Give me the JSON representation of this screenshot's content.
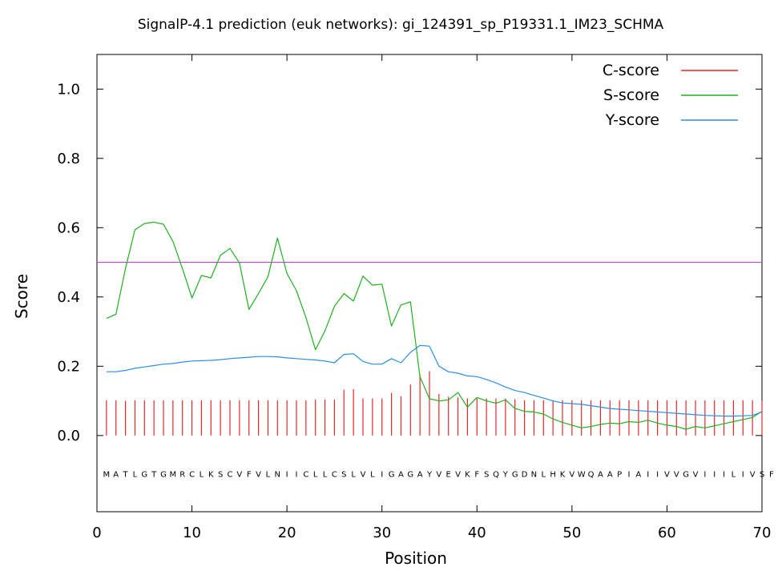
{
  "chart_data": {
    "type": "line",
    "title": "SignalP-4.1 prediction (euk networks): gi_124391_sp_P19331.1_IM23_SCHMA",
    "xlabel": "Position",
    "ylabel": "Score",
    "xlim": [
      0,
      70
    ],
    "ylim": [
      -0.22,
      1.1
    ],
    "xticks": [
      0,
      10,
      20,
      30,
      40,
      50,
      60,
      70
    ],
    "yticks": [
      0.0,
      0.2,
      0.4,
      0.6,
      0.8,
      1.0
    ],
    "xtick_labels": [
      "0",
      "10",
      "20",
      "30",
      "40",
      "50",
      "60",
      "70"
    ],
    "ytick_labels": [
      "0.0",
      "0.2",
      "0.4",
      "0.6",
      "0.8",
      "1.0"
    ],
    "threshold": 0.5,
    "legend_position": "top-right",
    "sequence": "MATLGTGMRCLKSCVFVLNIICLLCSLVLIGAGAYVEVKFSQYGDNLHKVWQAAPIAIIVVGVIIILIVSF",
    "colors": {
      "c_score": "#e8262a",
      "s_score": "#1fb01f",
      "y_score": "#2a8ee8",
      "threshold": "#c040e8"
    },
    "series": [
      {
        "name": "C-score",
        "style": "impulse",
        "x": [
          1,
          2,
          3,
          4,
          5,
          6,
          7,
          8,
          9,
          10,
          11,
          12,
          13,
          14,
          15,
          16,
          17,
          18,
          19,
          20,
          21,
          22,
          23,
          24,
          25,
          26,
          27,
          28,
          29,
          30,
          31,
          32,
          33,
          34,
          35,
          36,
          37,
          38,
          39,
          40,
          41,
          42,
          43,
          44,
          45,
          46,
          47,
          48,
          49,
          50,
          51,
          52,
          53,
          54,
          55,
          56,
          57,
          58,
          59,
          60,
          61,
          62,
          63,
          64,
          65,
          66,
          67,
          68,
          69,
          70
        ],
        "values": [
          0.102,
          0.102,
          0.1,
          0.102,
          0.102,
          0.102,
          0.102,
          0.102,
          0.102,
          0.102,
          0.102,
          0.102,
          0.102,
          0.102,
          0.102,
          0.102,
          0.102,
          0.102,
          0.102,
          0.102,
          0.102,
          0.102,
          0.104,
          0.104,
          0.104,
          0.132,
          0.134,
          0.107,
          0.107,
          0.107,
          0.123,
          0.113,
          0.147,
          0.175,
          0.186,
          0.12,
          0.112,
          0.11,
          0.107,
          0.107,
          0.107,
          0.107,
          0.107,
          0.105,
          0.102,
          0.102,
          0.102,
          0.102,
          0.102,
          0.102,
          0.102,
          0.102,
          0.102,
          0.102,
          0.102,
          0.102,
          0.102,
          0.102,
          0.102,
          0.102,
          0.102,
          0.102,
          0.102,
          0.102,
          0.102,
          0.102,
          0.102,
          0.102,
          0.102,
          0.1
        ]
      },
      {
        "name": "S-score",
        "style": "line",
        "x": [
          1,
          2,
          3,
          4,
          5,
          6,
          7,
          8,
          9,
          10,
          11,
          12,
          13,
          14,
          15,
          16,
          17,
          18,
          19,
          20,
          21,
          22,
          23,
          24,
          25,
          26,
          27,
          28,
          29,
          30,
          31,
          32,
          33,
          34,
          35,
          36,
          37,
          38,
          39,
          40,
          41,
          42,
          43,
          44,
          45,
          46,
          47,
          48,
          49,
          50,
          51,
          52,
          53,
          54,
          55,
          56,
          57,
          58,
          59,
          60,
          61,
          62,
          63,
          64,
          65,
          66,
          67,
          68,
          69,
          70
        ],
        "values": [
          0.338,
          0.35,
          0.482,
          0.594,
          0.612,
          0.616,
          0.61,
          0.56,
          0.482,
          0.397,
          0.462,
          0.455,
          0.52,
          0.54,
          0.498,
          0.364,
          0.41,
          0.458,
          0.57,
          0.468,
          0.418,
          0.34,
          0.248,
          0.302,
          0.373,
          0.41,
          0.388,
          0.46,
          0.434,
          0.437,
          0.316,
          0.377,
          0.386,
          0.17,
          0.106,
          0.1,
          0.103,
          0.124,
          0.082,
          0.11,
          0.1,
          0.093,
          0.103,
          0.078,
          0.07,
          0.068,
          0.062,
          0.048,
          0.038,
          0.03,
          0.022,
          0.026,
          0.032,
          0.036,
          0.034,
          0.04,
          0.038,
          0.044,
          0.036,
          0.03,
          0.026,
          0.018,
          0.026,
          0.022,
          0.028,
          0.034,
          0.04,
          0.046,
          0.052,
          0.07
        ]
      },
      {
        "name": "Y-score",
        "style": "line",
        "x": [
          1,
          2,
          3,
          4,
          5,
          6,
          7,
          8,
          9,
          10,
          11,
          12,
          13,
          14,
          15,
          16,
          17,
          18,
          19,
          20,
          21,
          22,
          23,
          24,
          25,
          26,
          27,
          28,
          29,
          30,
          31,
          32,
          33,
          34,
          35,
          36,
          37,
          38,
          39,
          40,
          41,
          42,
          43,
          44,
          45,
          46,
          47,
          48,
          49,
          50,
          51,
          52,
          53,
          54,
          55,
          56,
          57,
          58,
          59,
          60,
          61,
          62,
          63,
          64,
          65,
          66,
          67,
          68,
          69,
          70
        ],
        "values": [
          0.184,
          0.184,
          0.188,
          0.194,
          0.198,
          0.202,
          0.206,
          0.208,
          0.212,
          0.215,
          0.216,
          0.217,
          0.219,
          0.222,
          0.224,
          0.226,
          0.228,
          0.228,
          0.227,
          0.224,
          0.222,
          0.22,
          0.218,
          0.215,
          0.21,
          0.234,
          0.236,
          0.214,
          0.206,
          0.206,
          0.222,
          0.21,
          0.24,
          0.26,
          0.258,
          0.2,
          0.184,
          0.18,
          0.172,
          0.17,
          0.162,
          0.152,
          0.14,
          0.13,
          0.124,
          0.116,
          0.108,
          0.1,
          0.094,
          0.092,
          0.09,
          0.086,
          0.082,
          0.078,
          0.076,
          0.074,
          0.072,
          0.07,
          0.068,
          0.066,
          0.064,
          0.062,
          0.06,
          0.058,
          0.057,
          0.056,
          0.056,
          0.057,
          0.058,
          0.068
        ]
      }
    ]
  }
}
